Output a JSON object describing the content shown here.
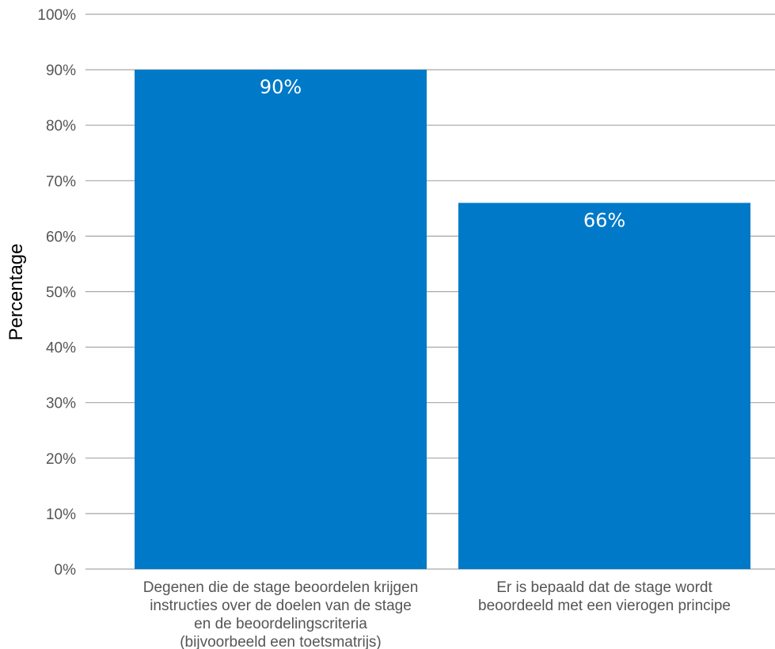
{
  "chart_data": {
    "type": "bar",
    "categories": [
      [
        "Degenen die de stage beoordelen krijgen",
        "instructies over de doelen van de stage",
        "en de beoordelingscriteria",
        "(bijvoorbeeld een toetsmatrijs)"
      ],
      [
        "Er is bepaald dat de stage wordt",
        "beoordeeld met een vierogen principe"
      ]
    ],
    "values": [
      90,
      66
    ],
    "data_labels": [
      "90%",
      "66%"
    ],
    "title": "",
    "xlabel": "",
    "ylabel": "Percentage",
    "ylim": [
      0,
      100
    ],
    "yticks": [
      0,
      10,
      20,
      30,
      40,
      50,
      60,
      70,
      80,
      90,
      100
    ],
    "ytick_labels": [
      "0%",
      "10%",
      "20%",
      "30%",
      "40%",
      "50%",
      "60%",
      "70%",
      "80%",
      "90%",
      "100%"
    ],
    "grid": true,
    "legend": "none",
    "colors": {
      "bar": "#0079c8",
      "grid": "#a6a6a6",
      "tick_text": "#555555",
      "data_label_text": "#ffffff"
    }
  }
}
